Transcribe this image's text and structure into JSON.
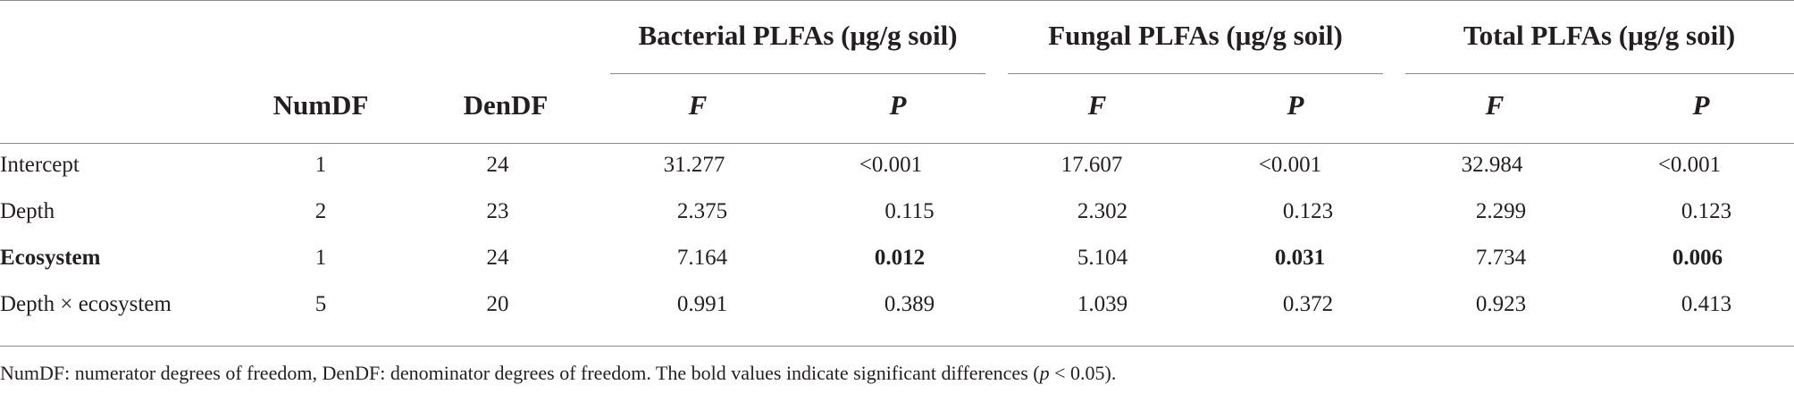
{
  "table": {
    "group_headers": [
      "Bacterial PLFAs (μg/g soil)",
      "Fungal PLFAs (μg/g soil)",
      "Total PLFAs (μg/g soil)"
    ],
    "columns": [
      "NumDF",
      "DenDF"
    ],
    "sub_headers": [
      "F",
      "P",
      "F",
      "P",
      "F",
      "P"
    ],
    "rows": [
      {
        "label": "Intercept",
        "bold_label": false,
        "cells": [
          "1",
          "24",
          "31.277",
          "<0.001",
          "17.607",
          "<0.001",
          "32.984",
          "<0.001"
        ],
        "bold_cells": []
      },
      {
        "label": "Depth",
        "bold_label": false,
        "cells": [
          "2",
          "23",
          "2.375",
          "0.115",
          "2.302",
          "0.123",
          "2.299",
          "0.123"
        ],
        "bold_cells": []
      },
      {
        "label": "Ecosystem",
        "bold_label": true,
        "cells": [
          "1",
          "24",
          "7.164",
          "0.012",
          "5.104",
          "0.031",
          "7.734",
          "0.006"
        ],
        "bold_cells": [
          3,
          5,
          7
        ]
      },
      {
        "label": "Depth × ecosystem",
        "bold_label": false,
        "cells": [
          "5",
          "20",
          "0.991",
          "0.389",
          "1.039",
          "0.372",
          "0.923",
          "0.413"
        ],
        "bold_cells": []
      }
    ],
    "footnote": {
      "before": "NumDF: numerator degrees of freedom, DenDF: denominator degrees of freedom. The bold values indicate significant differences (",
      "italic": "p",
      "after": " < 0.05)."
    }
  }
}
